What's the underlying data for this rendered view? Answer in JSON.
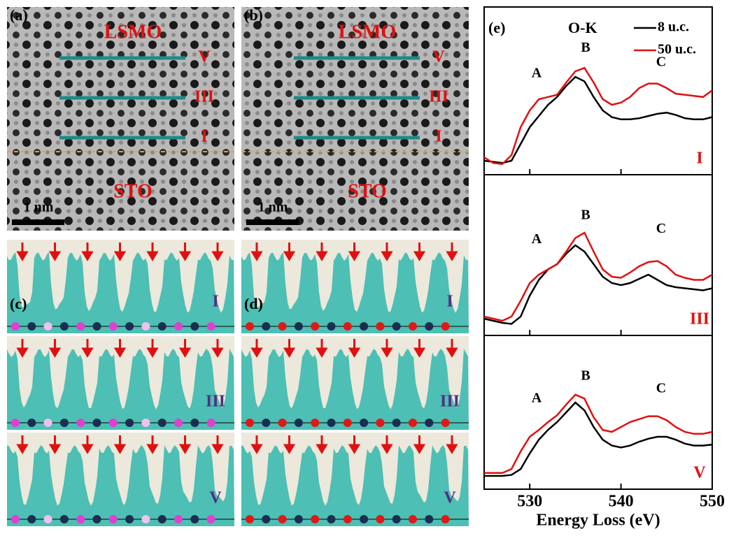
{
  "image_panels": [
    {
      "label": "(a)",
      "top_label": "LSMO",
      "bottom_label": "STO",
      "scale": "1 nm",
      "rows": [
        "V",
        "III",
        "I"
      ]
    },
    {
      "label": "(b)",
      "top_label": "LSMO",
      "bottom_label": "STO",
      "scale": "1 nm",
      "rows": [
        "V",
        "III",
        "I"
      ]
    }
  ],
  "profile_panels": [
    {
      "label": "(c)",
      "rows": [
        "I",
        "III",
        "V"
      ]
    },
    {
      "label": "(d)",
      "rows": [
        "I",
        "III",
        "V"
      ]
    }
  ],
  "chart_data": {
    "type": "line",
    "title": "(e)",
    "annotation": "O-K",
    "xlabel": "Energy Loss (eV)",
    "x": [
      525,
      526,
      527,
      528,
      529,
      530,
      531,
      532,
      533,
      534,
      535,
      536,
      537,
      538,
      539,
      540,
      541,
      542,
      543,
      544,
      545,
      546,
      547,
      548,
      549,
      550
    ],
    "xlim": [
      525,
      550
    ],
    "xticks": [
      530,
      540,
      550
    ],
    "ylim": [
      0,
      1
    ],
    "series": [
      {
        "name": "8 u.c.",
        "color": "#000000"
      },
      {
        "name": "50 u.c.",
        "color": "#e01010"
      }
    ],
    "subplots": [
      {
        "label": "I",
        "peaks": [
          "A",
          "B",
          "C"
        ],
        "values": [
          [
            0.05,
            0.04,
            0.03,
            0.05,
            0.2,
            0.35,
            0.45,
            0.55,
            0.62,
            0.72,
            0.8,
            0.76,
            0.62,
            0.5,
            0.44,
            0.42,
            0.42,
            0.43,
            0.45,
            0.47,
            0.48,
            0.46,
            0.43,
            0.42,
            0.42,
            0.44
          ],
          [
            0.08,
            0.03,
            0.02,
            0.1,
            0.35,
            0.5,
            0.6,
            0.62,
            0.64,
            0.75,
            0.85,
            0.88,
            0.75,
            0.6,
            0.55,
            0.57,
            0.62,
            0.7,
            0.74,
            0.74,
            0.7,
            0.65,
            0.64,
            0.63,
            0.62,
            0.68
          ]
        ]
      },
      {
        "label": "III",
        "peaks": [
          "A",
          "B",
          "C"
        ],
        "values": [
          [
            0.08,
            0.06,
            0.04,
            0.03,
            0.1,
            0.3,
            0.45,
            0.55,
            0.6,
            0.7,
            0.78,
            0.72,
            0.6,
            0.48,
            0.42,
            0.4,
            0.42,
            0.46,
            0.5,
            0.45,
            0.4,
            0.38,
            0.37,
            0.36,
            0.35,
            0.37
          ],
          [
            0.1,
            0.08,
            0.06,
            0.1,
            0.25,
            0.42,
            0.5,
            0.55,
            0.6,
            0.72,
            0.85,
            0.9,
            0.72,
            0.55,
            0.48,
            0.47,
            0.52,
            0.58,
            0.62,
            0.63,
            0.58,
            0.5,
            0.47,
            0.45,
            0.45,
            0.5
          ]
        ]
      },
      {
        "label": "V",
        "peaks": [
          "A",
          "B",
          "C"
        ],
        "values": [
          [
            0.05,
            0.05,
            0.05,
            0.06,
            0.12,
            0.28,
            0.42,
            0.52,
            0.6,
            0.7,
            0.8,
            0.72,
            0.55,
            0.42,
            0.36,
            0.34,
            0.36,
            0.4,
            0.43,
            0.45,
            0.45,
            0.42,
            0.38,
            0.36,
            0.36,
            0.37
          ],
          [
            0.08,
            0.08,
            0.08,
            0.12,
            0.3,
            0.45,
            0.52,
            0.6,
            0.67,
            0.78,
            0.88,
            0.84,
            0.65,
            0.52,
            0.5,
            0.55,
            0.6,
            0.63,
            0.66,
            0.66,
            0.62,
            0.55,
            0.5,
            0.48,
            0.48,
            0.5
          ]
        ]
      }
    ]
  }
}
